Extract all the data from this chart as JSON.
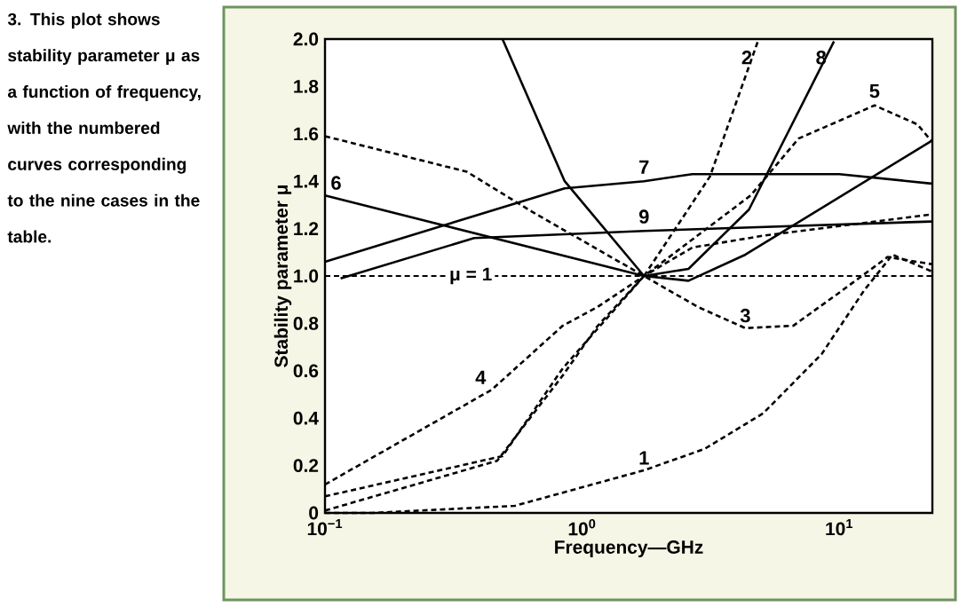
{
  "chart_data": {
    "type": "line",
    "xlabel": "Frequency—GHz",
    "ylabel": "Stability parameter μ",
    "annotations": [
      "3. This plot shows stability parameter μ as a function of frequency, with the numbered curves corresponding to the nine cases in the table."
    ],
    "log": "x",
    "xlim": [
      0.1,
      23
    ],
    "ylim": [
      0,
      2
    ],
    "xticks": [
      {
        "value": 0.1,
        "label": "10$^{−1}$"
      },
      {
        "value": 1,
        "label": "10$^{0}$"
      },
      {
        "value": 10,
        "label": "10$^{1}$"
      }
    ],
    "yticks": [
      0,
      {
        "value": 0.2,
        "label": "0.2"
      },
      {
        "value": 0.4,
        "label": "0.4"
      },
      {
        "value": 0.6,
        "label": "0.6"
      },
      {
        "value": 0.8,
        "label": "0.8"
      },
      {
        "value": 1,
        "label": "1.0"
      },
      {
        "value": 1.2,
        "label": "1.2"
      },
      {
        "value": 1.4,
        "label": "1.4"
      },
      {
        "value": 1.6,
        "label": "1.6"
      },
      {
        "value": 1.8,
        "label": "1.8"
      },
      {
        "value": 2,
        "label": "2.0"
      }
    ],
    "marker": "none",
    "ref_lines": [
      {
        "axis": "y",
        "value": 1,
        "label": "μ = 1",
        "line_style": "dashed",
        "color": "#000000"
      }
    ],
    "series": [
      {
        "name": "1",
        "color": "#000000",
        "line_style": "dashed",
        "x": [
          0.1,
          0.153,
          0.547,
          1.74,
          2.99,
          5.05,
          8.53,
          12.5,
          16.1,
          22.8
        ],
        "values": [
          0,
          0,
          0.03,
          0.18,
          0.27,
          0.42,
          0.67,
          0.94,
          1.09,
          1.02
        ]
      },
      {
        "name": "2",
        "color": "#000000",
        "line_style": "dashed",
        "x": [
          0.1,
          0.467,
          0.84,
          1.15,
          1.74,
          3.14,
          4.82
        ],
        "values": [
          0.01,
          0.22,
          0.58,
          0.79,
          1.0,
          1.42,
          1.99
        ]
      },
      {
        "name": "3",
        "color": "#000000",
        "line_style": "dashed",
        "x": [
          0.1,
          0.356,
          0.641,
          1.74,
          2.81,
          4.31,
          6.62,
          10,
          15.4,
          22.8
        ],
        "values": [
          1.59,
          1.44,
          1.27,
          1.0,
          0.87,
          0.78,
          0.79,
          0.93,
          1.08,
          1.05
        ]
      },
      {
        "name": "4",
        "color": "#000000",
        "line_style": "dashed",
        "x": [
          0.1,
          0.445,
          0.84,
          1.15,
          1.74,
          2.68,
          5.05,
          22.8
        ],
        "values": [
          0.12,
          0.52,
          0.79,
          0.87,
          1.0,
          1.12,
          1.17,
          1.26
        ]
      },
      {
        "name": "5",
        "color": "#000000",
        "line_style": "dashed",
        "x": [
          0.1,
          0.49,
          0.84,
          1.74,
          4.52,
          6.94,
          13.7,
          20.1,
          22.8
        ],
        "values": [
          0.07,
          0.24,
          0.61,
          1.0,
          1.34,
          1.58,
          1.72,
          1.64,
          1.57
        ]
      },
      {
        "name": "6",
        "color": "#000000",
        "line_style": "solid",
        "x": [
          0.1,
          1.74,
          2.59,
          4.31,
          22.8
        ],
        "values": [
          1.34,
          1.0,
          0.98,
          1.09,
          1.57
        ]
      },
      {
        "name": "7",
        "color": "#000000",
        "line_style": "solid",
        "x": [
          0.1,
          0.855,
          1.74,
          2.68,
          10,
          22.8
        ],
        "values": [
          1.06,
          1.37,
          1.4,
          1.43,
          1.43,
          1.39
        ]
      },
      {
        "name": "8",
        "color": "#000000",
        "line_style": "solid",
        "x": [
          0.49,
          0.855,
          1.74,
          2.59,
          4.45,
          9.53
        ],
        "values": [
          2.0,
          1.4,
          1.0,
          1.03,
          1.28,
          1.99
        ]
      },
      {
        "name": "9",
        "color": "#000000",
        "line_style": "solid",
        "x": [
          0.115,
          0.38,
          1.74,
          22.8
        ],
        "values": [
          0.99,
          1.16,
          1.19,
          1.23
        ]
      }
    ]
  }
}
